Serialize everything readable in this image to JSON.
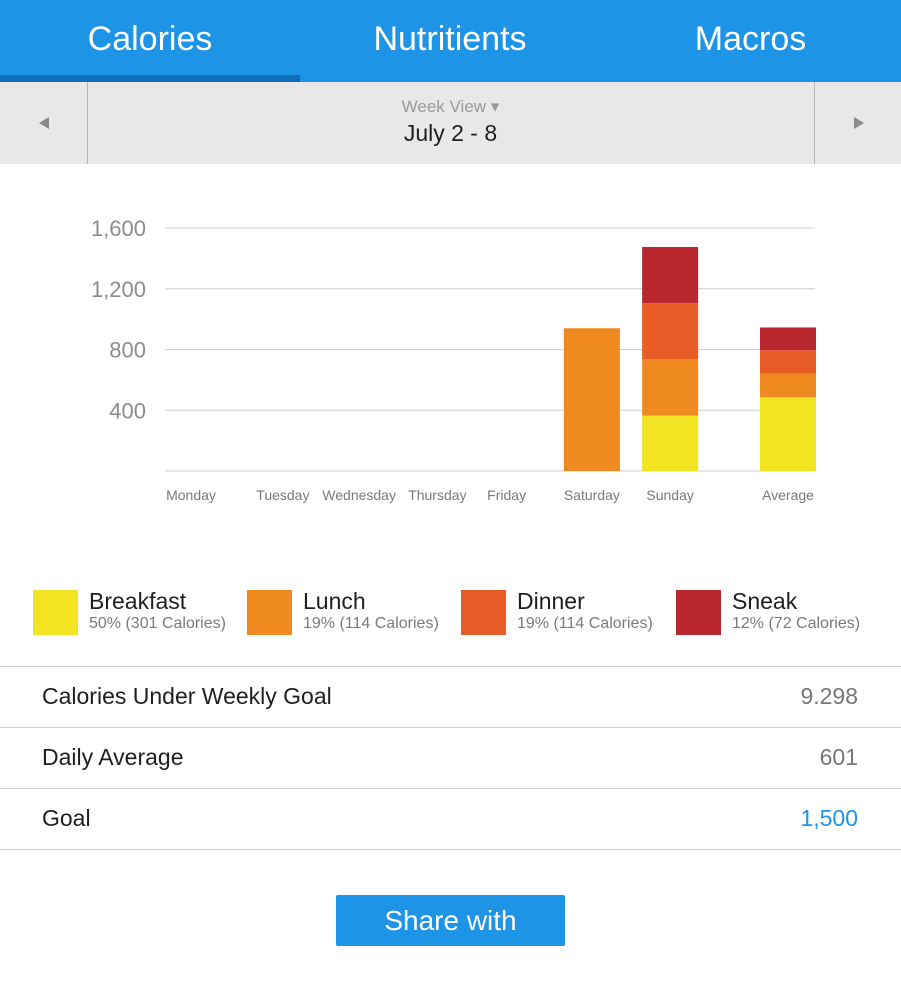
{
  "tabs": [
    {
      "label": "Calories",
      "active": true
    },
    {
      "label": "Nutritients",
      "active": false
    },
    {
      "label": "Macros",
      "active": false
    }
  ],
  "week_nav": {
    "prev_icon": "left-triangle",
    "next_icon": "right-triangle",
    "view_label": "Week View ▾",
    "range": "July 2 - 8"
  },
  "chart_data": {
    "type": "bar",
    "stacked": true,
    "categories": [
      "Monday",
      "Tuesday",
      "Wednesday",
      "Thursday",
      "Friday",
      "Saturday",
      "Sunday",
      "Average"
    ],
    "y_ticks": [
      "400",
      "800",
      "1,200",
      "1,600"
    ],
    "ylim": [
      0,
      1600
    ],
    "grid": true,
    "series": [
      {
        "name": "Breakfast",
        "color": "#f2e422",
        "values": [
          0,
          0,
          0,
          0,
          0,
          0,
          365,
          485
        ]
      },
      {
        "name": "Lunch",
        "color": "#ef8a21",
        "values": [
          0,
          0,
          0,
          0,
          0,
          940,
          370,
          155
        ]
      },
      {
        "name": "Dinner",
        "color": "#e85c25",
        "values": [
          0,
          0,
          0,
          0,
          0,
          0,
          370,
          155
        ]
      },
      {
        "name": "Sneak",
        "color": "#b8262e",
        "values": [
          0,
          0,
          0,
          0,
          0,
          0,
          370,
          150
        ]
      }
    ]
  },
  "legend": [
    {
      "name": "Breakfast",
      "detail": "50% (301 Calories)",
      "color": "#f2e422"
    },
    {
      "name": "Lunch",
      "detail": "19% (114 Calories)",
      "color": "#ef8a21"
    },
    {
      "name": "Dinner",
      "detail": "19% (114 Calories)",
      "color": "#e85c25"
    },
    {
      "name": "Sneak",
      "detail": "12% (72 Calories)",
      "color": "#b8262e"
    }
  ],
  "stats": [
    {
      "label": "Calories Under Weekly Goal",
      "value": "9.298"
    },
    {
      "label": "Daily Average",
      "value": "601"
    },
    {
      "label": "Goal",
      "value": "1,500"
    }
  ],
  "share_label": "Share with",
  "colors": {
    "primary": "#1e94e6",
    "indicator": "#0e6db8",
    "nav_bg": "#e8e8e8"
  }
}
